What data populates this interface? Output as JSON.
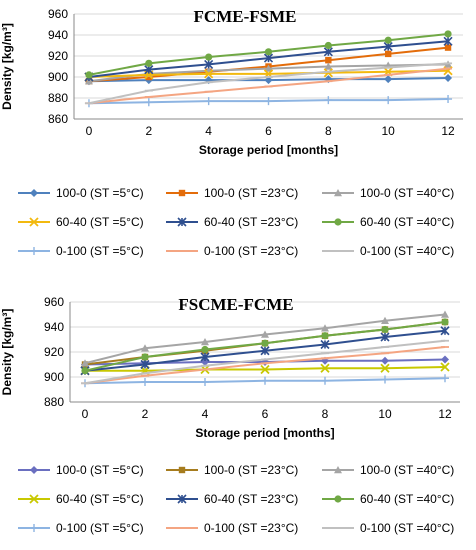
{
  "chart_data": [
    {
      "type": "line",
      "title": "FCME-FSME",
      "xlabel": "Storage period [months]",
      "ylabel": "Density [kg/m³]",
      "x": [
        0,
        2,
        4,
        6,
        8,
        10,
        12
      ],
      "xlim": [
        -0.5,
        12.5
      ],
      "ylim": [
        860,
        960
      ],
      "yticks": [
        860,
        880,
        900,
        920,
        940,
        960
      ],
      "xticks": [
        0,
        2,
        4,
        6,
        8,
        10,
        12
      ],
      "grid": "horizontal",
      "legend_position": "bottom",
      "series": [
        {
          "name": "100-0 (ST =5°C)",
          "color": "#4F81BD",
          "marker": "diamond",
          "values": [
            896,
            897,
            897,
            897,
            898,
            898,
            899
          ]
        },
        {
          "name": "100-0 (ST =23°C)",
          "color": "#E36C0A",
          "marker": "square",
          "values": [
            896,
            900,
            905,
            910,
            916,
            922,
            928
          ]
        },
        {
          "name": "100-0 (ST =40°C)",
          "color": "#A5A5A5",
          "marker": "triangle",
          "values": [
            896,
            903,
            906,
            908,
            910,
            911,
            912
          ]
        },
        {
          "name": "60-40 (ST =5°C)",
          "color": "#F2B90F",
          "marker": "x",
          "values": [
            900,
            902,
            903,
            903,
            904,
            905,
            906
          ]
        },
        {
          "name": "60-40 (ST =23°C)",
          "color": "#2F4F8F",
          "marker": "star",
          "values": [
            900,
            907,
            912,
            918,
            924,
            929,
            934
          ]
        },
        {
          "name": "60-40 (ST =40°C)",
          "color": "#70A845",
          "marker": "circle",
          "values": [
            902,
            913,
            919,
            924,
            930,
            935,
            941
          ]
        },
        {
          "name": "0-100 (ST =5°C)",
          "color": "#8DB4E2",
          "marker": "plus",
          "values": [
            875,
            876,
            877,
            877,
            878,
            878,
            879
          ]
        },
        {
          "name": "0-100 (ST =23°C)",
          "color": "#F4A582",
          "marker": "dash",
          "values": [
            875,
            881,
            886,
            891,
            896,
            902,
            908
          ]
        },
        {
          "name": "0-100 (ST =40°C)",
          "color": "#C0C0C0",
          "marker": "dash",
          "values": [
            875,
            887,
            895,
            900,
            905,
            909,
            913
          ]
        }
      ]
    },
    {
      "type": "line",
      "title": "FSCME-FCME",
      "xlabel": "Storage period [months]",
      "ylabel": "Density [kg/m³]",
      "x": [
        0,
        2,
        4,
        6,
        8,
        10,
        12
      ],
      "xlim": [
        -0.5,
        12.5
      ],
      "ylim": [
        880,
        960
      ],
      "yticks": [
        880,
        900,
        920,
        940,
        960
      ],
      "xticks": [
        0,
        2,
        4,
        6,
        8,
        10,
        12
      ],
      "grid": "horizontal",
      "legend_position": "bottom",
      "series": [
        {
          "name": "100-0 (ST =5°C)",
          "color": "#6A6FC0",
          "marker": "diamond",
          "values": [
            910,
            911,
            912,
            912,
            913,
            913,
            914
          ]
        },
        {
          "name": "100-0 (ST =23°C)",
          "color": "#A67C1E",
          "marker": "square",
          "values": [
            910,
            916,
            921,
            927,
            933,
            938,
            944
          ]
        },
        {
          "name": "100-0 (ST =40°C)",
          "color": "#A5A5A5",
          "marker": "triangle",
          "values": [
            911,
            923,
            928,
            934,
            939,
            945,
            950
          ]
        },
        {
          "name": "60-40 (ST =5°C)",
          "color": "#C8C800",
          "marker": "x",
          "values": [
            905,
            905,
            906,
            906,
            907,
            907,
            908
          ]
        },
        {
          "name": "60-40 (ST =23°C)",
          "color": "#2F4F8F",
          "marker": "star",
          "values": [
            905,
            910,
            916,
            921,
            926,
            932,
            937
          ]
        },
        {
          "name": "60-40 (ST =40°C)",
          "color": "#70A845",
          "marker": "circle",
          "values": [
            905,
            916,
            922,
            927,
            933,
            938,
            944
          ]
        },
        {
          "name": "0-100 (ST =5°C)",
          "color": "#8DB4E2",
          "marker": "plus",
          "values": [
            895,
            896,
            896,
            897,
            897,
            898,
            899
          ]
        },
        {
          "name": "0-100 (ST =23°C)",
          "color": "#F4A582",
          "marker": "dash",
          "values": [
            895,
            901,
            906,
            911,
            915,
            919,
            924
          ]
        },
        {
          "name": "0-100 (ST =40°C)",
          "color": "#C0C0C0",
          "marker": "dash",
          "values": [
            895,
            903,
            909,
            914,
            919,
            924,
            929
          ]
        }
      ]
    }
  ]
}
